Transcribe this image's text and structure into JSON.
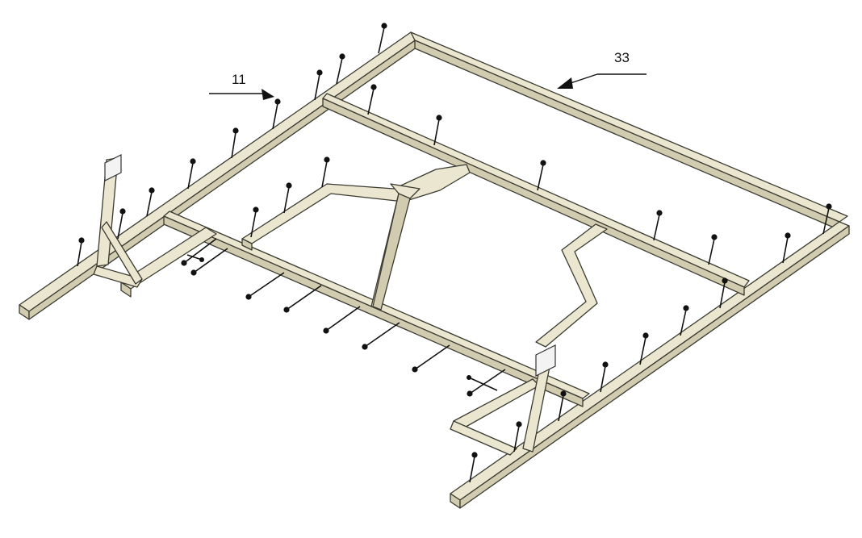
{
  "diagram": {
    "callouts": [
      {
        "id": "callout-11",
        "label": "11"
      },
      {
        "id": "callout-33",
        "label": "33"
      }
    ],
    "colors": {
      "tube_fill": "#eae6cf",
      "tube_shade": "#d1cbb0",
      "outline": "#3a3a30",
      "bolt": "#111111",
      "background": "#ffffff"
    }
  }
}
